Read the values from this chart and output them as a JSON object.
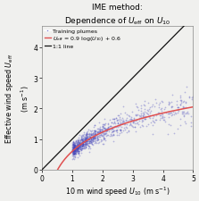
{
  "title_line1": "IME method:",
  "title_line2": "Dependence of $U_{\\mathrm{eff}}$ on $U_{10}$",
  "xlabel": "10 m wind speed $U_{10}$ (m s$^{-1}$)",
  "ylabel_top": "Effective wind speed $U_{\\mathrm{eff}}$",
  "ylabel_bot": "(m s$^{-1}$)",
  "xlim": [
    0,
    5
  ],
  "ylim": [
    0,
    4.7
  ],
  "xticks": [
    0,
    1,
    2,
    3,
    4,
    5
  ],
  "yticks": [
    0,
    1,
    2,
    3,
    4
  ],
  "dot_color": "#4444bb",
  "dot_alpha": 0.35,
  "dot_size": 1.5,
  "fit_color": "#e05050",
  "line11_color": "#111111",
  "legend_dot_label": "Training plumes",
  "legend_fit_label": "$U_{\\mathrm{eff}}$ = 0.9 log($U_{10}$) + 0.6",
  "legend_line_label": "1:1 line",
  "bg_color": "#f0f0ee",
  "seed": 42,
  "n_points": 1000
}
